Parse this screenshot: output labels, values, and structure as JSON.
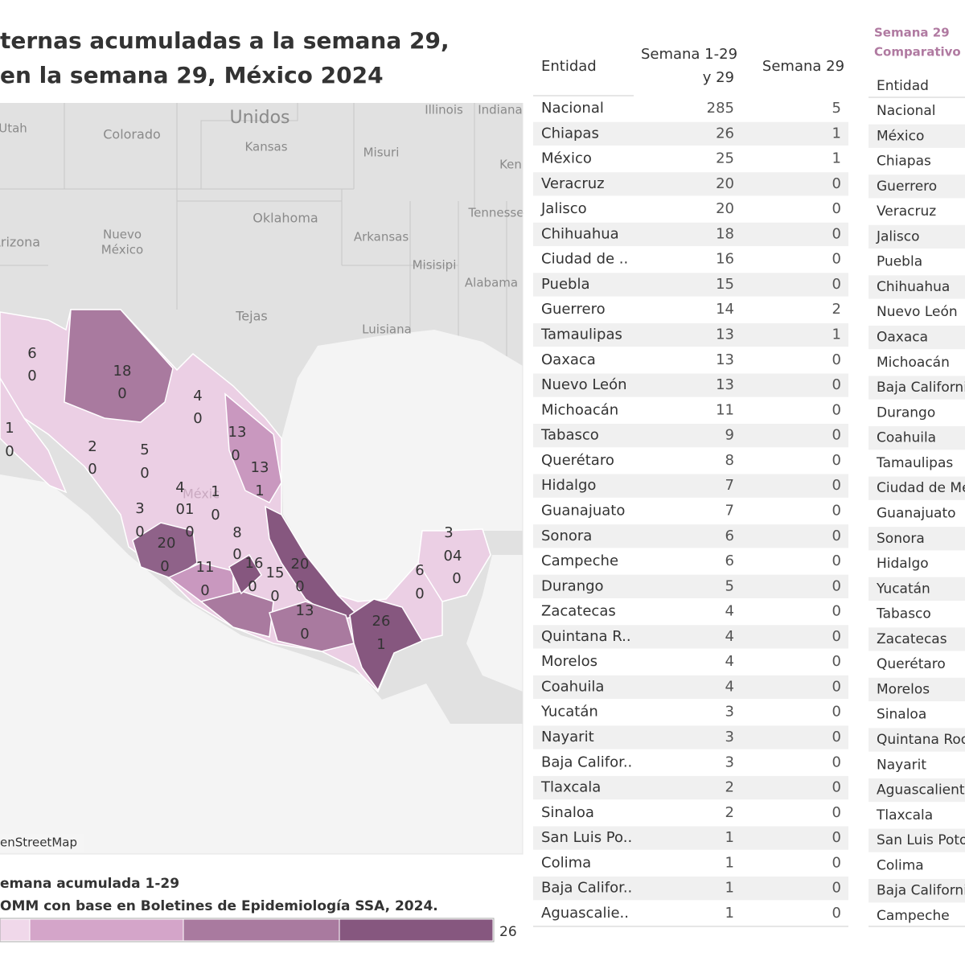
{
  "header": {
    "title_lines": [
      "ternas acumuladas a la semana 29,",
      "en la semana 29, México 2024"
    ]
  },
  "map": {
    "place_labels": [
      "Utah",
      "Colorado",
      "Unidos",
      "Kansas",
      "Illinois",
      "Indiana",
      "Misuri",
      "Ken",
      "Oklahoma",
      "Tennesse",
      "Arizona",
      "Nuevo",
      "México",
      "Arkansas",
      "Misisipi",
      "Alabama",
      "Tejas",
      "Luisiana",
      "Méxic"
    ],
    "state_labels": [
      "6",
      "0",
      "18",
      "0",
      "1",
      "0",
      "2",
      "0",
      "5",
      "0",
      "4",
      "0",
      "13",
      "0",
      "13",
      "1",
      "4",
      "01",
      "0",
      "1",
      "0",
      "3",
      "0",
      "8",
      "0",
      "20",
      "0",
      "11",
      "0",
      "16",
      "0",
      "15",
      "0",
      "20",
      "0",
      "13",
      "0",
      "26",
      "1",
      "6",
      "0",
      "3",
      "04",
      "0"
    ],
    "attribution": "enStreetMap"
  },
  "legend": {
    "title": "emana acumulada 1-29",
    "source": "OMM con base en Boletines de Epidemiología SSA, 2024.",
    "max": "26"
  },
  "table": {
    "header": {
      "entity": "Entidad",
      "cumulative": [
        "Semana 1-29",
        "y 29"
      ],
      "week": "Semana 29"
    },
    "rows": [
      [
        "Nacional",
        "285",
        "5"
      ],
      [
        "Chiapas",
        "26",
        "1"
      ],
      [
        "México",
        "25",
        "1"
      ],
      [
        "Veracruz",
        "20",
        "0"
      ],
      [
        "Jalisco",
        "20",
        "0"
      ],
      [
        "Chihuahua",
        "18",
        "0"
      ],
      [
        "Ciudad de ..",
        "16",
        "0"
      ],
      [
        "Puebla",
        "15",
        "0"
      ],
      [
        "Guerrero",
        "14",
        "2"
      ],
      [
        "Tamaulipas",
        "13",
        "1"
      ],
      [
        "Oaxaca",
        "13",
        "0"
      ],
      [
        "Nuevo León",
        "13",
        "0"
      ],
      [
        "Michoacán",
        "11",
        "0"
      ],
      [
        "Tabasco",
        "9",
        "0"
      ],
      [
        "Querétaro",
        "8",
        "0"
      ],
      [
        "Hidalgo",
        "7",
        "0"
      ],
      [
        "Guanajuato",
        "7",
        "0"
      ],
      [
        "Sonora",
        "6",
        "0"
      ],
      [
        "Campeche",
        "6",
        "0"
      ],
      [
        "Durango",
        "5",
        "0"
      ],
      [
        "Zacatecas",
        "4",
        "0"
      ],
      [
        "Quintana R..",
        "4",
        "0"
      ],
      [
        "Morelos",
        "4",
        "0"
      ],
      [
        "Coahuila",
        "4",
        "0"
      ],
      [
        "Yucatán",
        "3",
        "0"
      ],
      [
        "Nayarit",
        "3",
        "0"
      ],
      [
        "Baja Califor..",
        "3",
        "0"
      ],
      [
        "Tlaxcala",
        "2",
        "0"
      ],
      [
        "Sinaloa",
        "2",
        "0"
      ],
      [
        "San Luis Po..",
        "1",
        "0"
      ],
      [
        "Colima",
        "1",
        "0"
      ],
      [
        "Baja Califor..",
        "1",
        "0"
      ],
      [
        "Aguascalie..",
        "1",
        "0"
      ]
    ]
  },
  "table2": {
    "title": [
      "Semana 29",
      "Comparativo a"
    ],
    "header": "Entidad",
    "rows": [
      "Nacional",
      "México",
      "Chiapas",
      "Guerrero",
      "Veracruz",
      "Jalisco",
      "Puebla",
      "Chihuahua",
      "Nuevo León",
      "Oaxaca",
      "Michoacán",
      "Baja Californi",
      "Durango",
      "Coahuila",
      "Tamaulipas",
      "Ciudad de Mé",
      "Guanajuato",
      "Sonora",
      "Hidalgo",
      "Yucatán",
      "Tabasco",
      "Zacatecas",
      "Querétaro",
      "Morelos",
      "Sinaloa",
      "Quintana Roo",
      "Nayarit",
      "Aguascalient.",
      "Tlaxcala",
      "San Luis Poto",
      "Colima",
      "Baja Californi",
      "Campeche"
    ]
  }
}
